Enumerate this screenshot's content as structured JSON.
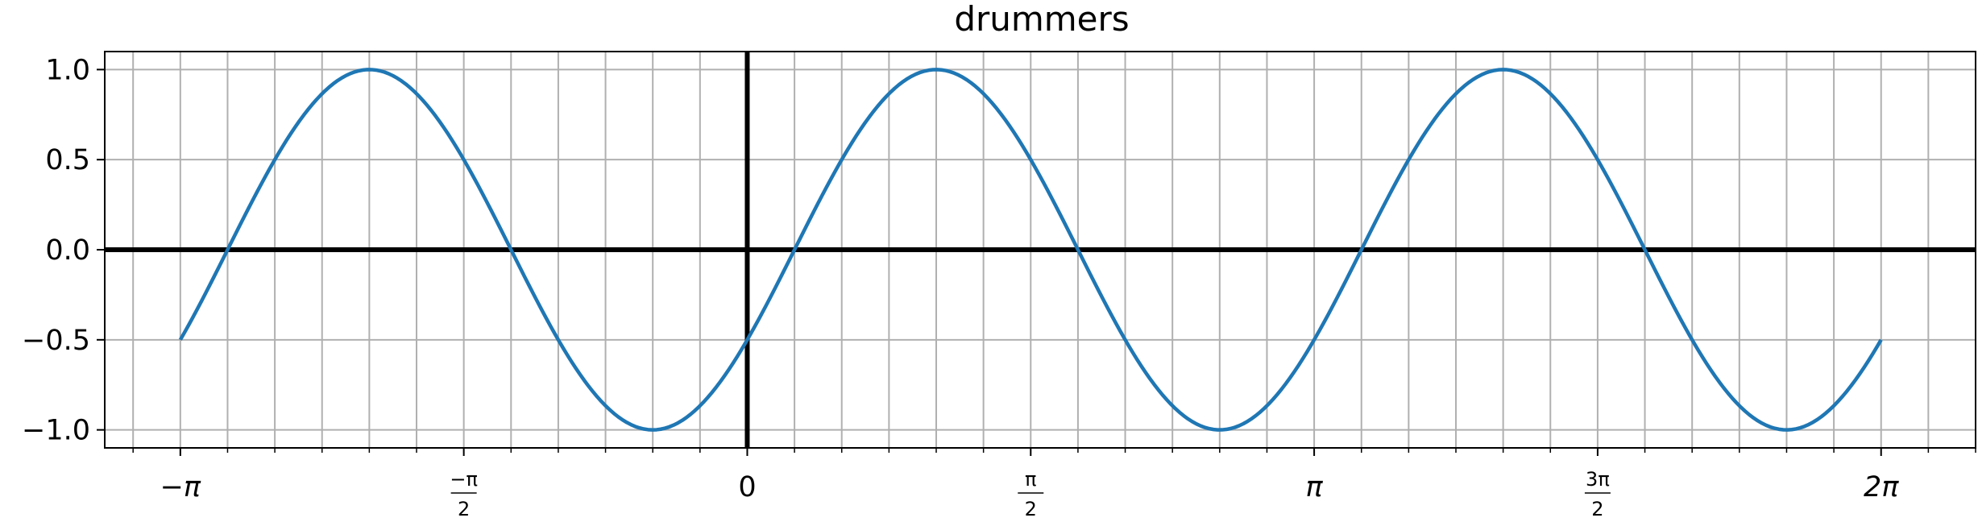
{
  "chart_data": {
    "type": "line",
    "title": "drummers",
    "xlabel": "",
    "ylabel": "",
    "xlim": [
      -3.5605,
      6.8068
    ],
    "ylim": [
      -1.1,
      1.1
    ],
    "grid": true,
    "minor_grid_step": 0.2618,
    "function": "sin(2x - π/6)",
    "x_ticks": [
      {
        "value": -3.14159,
        "kind": "plain",
        "text": "−π"
      },
      {
        "value": -1.5708,
        "kind": "fraction",
        "numerator": "−π",
        "denominator": "2"
      },
      {
        "value": 0,
        "kind": "plain",
        "text": "0"
      },
      {
        "value": 1.5708,
        "kind": "fraction",
        "numerator": "π",
        "denominator": "2"
      },
      {
        "value": 3.14159,
        "kind": "plain",
        "text": "π"
      },
      {
        "value": 4.71239,
        "kind": "fraction",
        "numerator": "3π",
        "denominator": "2"
      },
      {
        "value": 6.28319,
        "kind": "plain",
        "text": "2π"
      }
    ],
    "y_ticks": [
      {
        "value": 1.0,
        "text": "1.0"
      },
      {
        "value": 0.5,
        "text": "0.5"
      },
      {
        "value": 0.0,
        "text": "0.0"
      },
      {
        "value": -0.5,
        "text": "−0.5"
      },
      {
        "value": -1.0,
        "text": "−1.0"
      }
    ],
    "series": [
      {
        "color": "#1f77b4",
        "x": [
          -3.1416,
          -3.0107,
          -2.8798,
          -2.7489,
          -2.618,
          -2.4871,
          -2.3562,
          -2.2253,
          -2.0944,
          -1.9635,
          -1.8326,
          -1.7017,
          -1.5708,
          -1.4399,
          -1.309,
          -1.1781,
          -1.0472,
          -0.9163,
          -0.7854,
          -0.6545,
          -0.5236,
          -0.3927,
          -0.2618,
          -0.1309,
          0.0,
          0.1309,
          0.2618,
          0.3927,
          0.5236,
          0.6545,
          0.7854,
          0.9163,
          1.0472,
          1.1781,
          1.309,
          1.4399,
          1.5708,
          1.7017,
          1.8326,
          1.9635,
          2.0944,
          2.2253,
          2.3562,
          2.4871,
          2.618,
          2.7489,
          2.8798,
          3.0107,
          3.1416,
          3.2725,
          3.4034,
          3.5343,
          3.6652,
          3.7961,
          3.927,
          4.0579,
          4.1888,
          4.3197,
          4.4506,
          4.5815,
          4.7124,
          4.8433,
          4.9742,
          5.1051,
          5.236,
          5.3669,
          5.4978,
          5.6287,
          5.7596,
          5.8905,
          6.0214,
          6.1523,
          6.2832
        ],
        "y": [
          -0.5,
          -0.259,
          0.0,
          0.259,
          0.5,
          0.707,
          0.866,
          0.966,
          1.0,
          0.966,
          0.866,
          0.707,
          0.5,
          0.259,
          0.0,
          -0.259,
          -0.5,
          -0.707,
          -0.866,
          -0.966,
          -1.0,
          -0.966,
          -0.866,
          -0.707,
          -0.5,
          -0.259,
          0.0,
          0.259,
          0.5,
          0.707,
          0.866,
          0.966,
          1.0,
          0.966,
          0.866,
          0.707,
          0.5,
          0.259,
          0.0,
          -0.259,
          -0.5,
          -0.707,
          -0.866,
          -0.966,
          -1.0,
          -0.966,
          -0.866,
          -0.707,
          -0.5,
          -0.259,
          0.0,
          0.259,
          0.5,
          0.707,
          0.866,
          0.966,
          1.0,
          0.966,
          0.866,
          0.707,
          0.5,
          0.259,
          0.0,
          -0.259,
          -0.5,
          -0.707,
          -0.866,
          -0.966,
          -1.0,
          -0.966,
          -0.866,
          -0.707,
          -0.5
        ]
      }
    ]
  }
}
